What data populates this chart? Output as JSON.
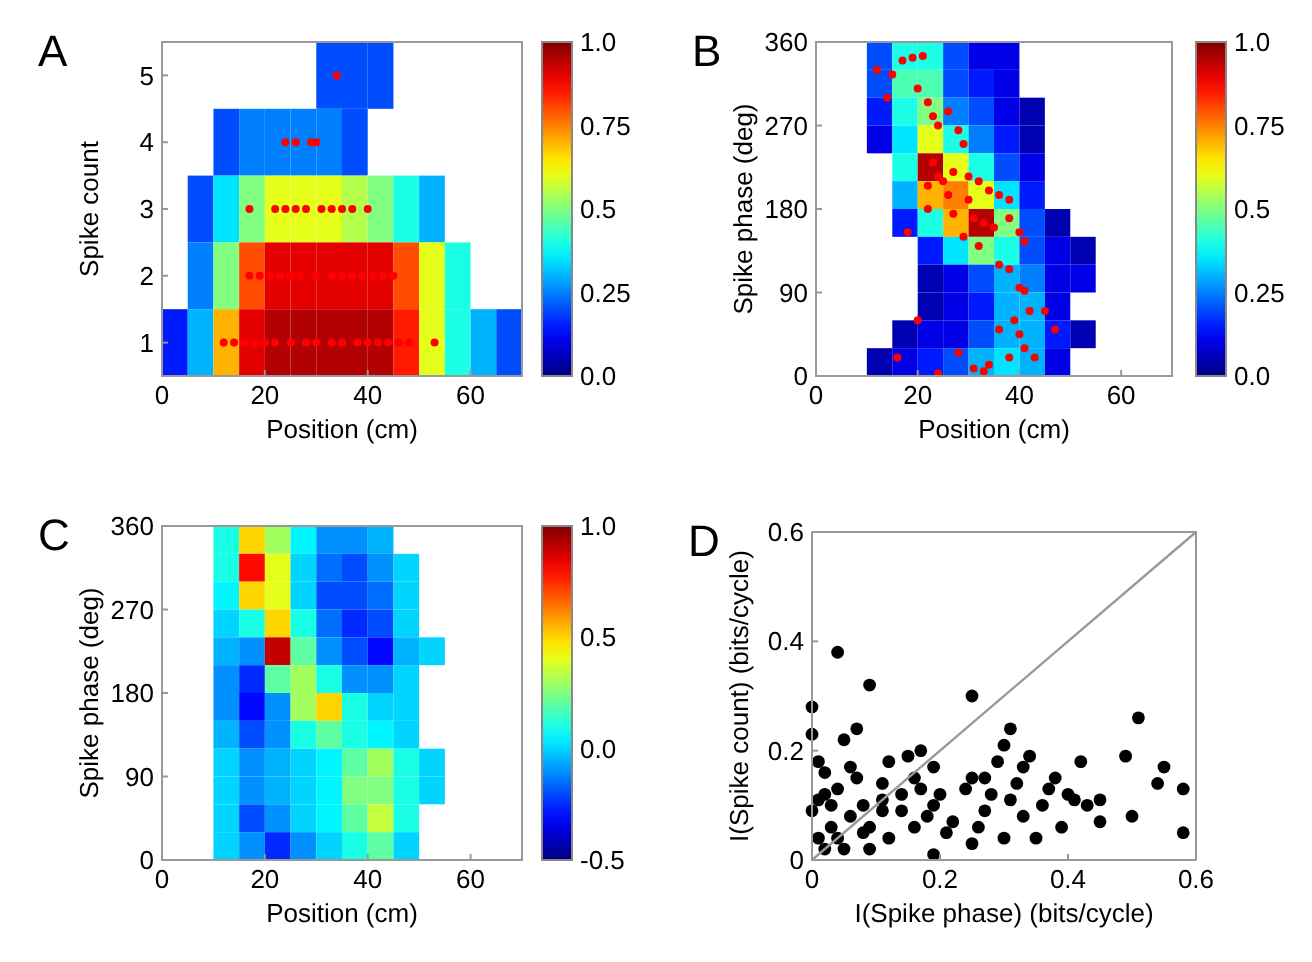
{
  "chart_data": [
    {
      "type": "heatmap",
      "title": "A",
      "xlabel": "Position (cm)",
      "ylabel": "Spike count",
      "xlim": [
        0,
        70
      ],
      "ylim": [
        0.5,
        5.5
      ],
      "xticks": [
        0,
        20,
        40,
        60
      ],
      "yticks": [
        1,
        2,
        3,
        4,
        5
      ],
      "clim": [
        0,
        1
      ],
      "cticks": [
        {
          "value": 0,
          "label": "0.0"
        },
        0.25,
        0.5,
        0.75,
        {
          "value": 1,
          "label": "1.0"
        }
      ],
      "marker": "circle",
      "cells": [
        [
          null,
          null,
          null,
          null,
          null,
          null,
          0.2,
          0.2,
          0.2,
          null,
          null,
          null,
          null,
          null
        ],
        [
          null,
          null,
          0.2,
          0.25,
          0.25,
          0.25,
          0.25,
          0.2,
          null,
          null,
          null,
          null,
          null,
          null
        ],
        [
          null,
          0.2,
          0.35,
          0.5,
          0.6,
          0.6,
          0.6,
          0.55,
          0.5,
          0.4,
          0.3,
          null,
          null,
          null
        ],
        [
          null,
          0.25,
          0.5,
          0.8,
          0.9,
          0.9,
          0.9,
          0.9,
          0.9,
          0.8,
          0.6,
          0.4,
          null,
          null
        ],
        [
          0.15,
          0.3,
          0.7,
          0.9,
          0.95,
          0.95,
          0.95,
          0.95,
          0.95,
          0.85,
          0.6,
          0.4,
          0.3,
          0.2
        ]
      ],
      "series": [
        {
          "type": "scatter",
          "color": "#ff0000",
          "x": [
            12,
            14,
            16,
            18,
            20,
            22,
            25,
            28,
            30,
            33,
            35,
            38,
            40,
            42,
            44,
            46,
            48,
            53,
            17,
            19,
            21,
            23,
            25,
            27,
            30,
            33,
            35,
            37,
            39,
            41,
            43,
            45,
            17,
            22,
            24,
            26,
            28,
            31,
            33,
            35,
            37,
            40,
            24,
            26,
            29,
            30,
            34
          ],
          "values": [
            1,
            1,
            1,
            1,
            1,
            1,
            1,
            1,
            1,
            1,
            1,
            1,
            1,
            1,
            1,
            1,
            1,
            1,
            2,
            2,
            2,
            2,
            2,
            2,
            2,
            2,
            2,
            2,
            2,
            2,
            2,
            2,
            3,
            3,
            3,
            3,
            3,
            3,
            3,
            3,
            3,
            3,
            4,
            4,
            4,
            4,
            5
          ]
        }
      ]
    },
    {
      "type": "heatmap",
      "title": "B",
      "xlabel": "Position (cm)",
      "ylabel": "Spike phase (deg)",
      "xlim": [
        0,
        70
      ],
      "ylim": [
        0,
        360
      ],
      "xticks": [
        0,
        20,
        40,
        60
      ],
      "yticks": [
        0,
        90,
        180,
        270,
        360
      ],
      "clim": [
        0,
        1
      ],
      "cticks": [
        {
          "value": 0,
          "label": "0.0"
        },
        0.25,
        0.5,
        0.75,
        {
          "value": 1,
          "label": "1.0"
        }
      ],
      "marker": "circle",
      "cells": [
        [
          null,
          null,
          0.2,
          0.4,
          0.4,
          0.2,
          0.1,
          0.1,
          null,
          null,
          null,
          null,
          null,
          null
        ],
        [
          null,
          null,
          0.2,
          0.45,
          0.45,
          0.2,
          0.15,
          0.1,
          null,
          null,
          null,
          null,
          null,
          null
        ],
        [
          null,
          null,
          0.15,
          0.4,
          0.5,
          0.25,
          0.2,
          0.1,
          0.05,
          null,
          null,
          null,
          null,
          null
        ],
        [
          null,
          null,
          0.1,
          0.35,
          0.6,
          0.4,
          0.25,
          0.15,
          0.05,
          null,
          null,
          null,
          null,
          null
        ],
        [
          null,
          null,
          null,
          0.4,
          0.95,
          0.6,
          0.4,
          0.2,
          0.1,
          null,
          null,
          null,
          null,
          null
        ],
        [
          null,
          null,
          null,
          0.3,
          0.7,
          0.75,
          0.6,
          0.35,
          0.15,
          null,
          null,
          null,
          null,
          null
        ],
        [
          null,
          null,
          null,
          0.15,
          0.4,
          0.7,
          0.95,
          0.5,
          0.2,
          0.05,
          null,
          null,
          null,
          null
        ],
        [
          null,
          null,
          null,
          null,
          0.15,
          0.35,
          0.5,
          0.4,
          0.2,
          0.1,
          0.05,
          null,
          null,
          null
        ],
        [
          null,
          null,
          null,
          null,
          0.05,
          0.1,
          0.2,
          0.3,
          0.25,
          0.1,
          0.1,
          null,
          null,
          null
        ],
        [
          null,
          null,
          null,
          null,
          0.05,
          0.1,
          0.15,
          0.3,
          0.3,
          0.1,
          null,
          null,
          null,
          null
        ],
        [
          null,
          null,
          null,
          0.05,
          0.1,
          0.1,
          0.2,
          0.3,
          0.3,
          0.15,
          0.05,
          null,
          null,
          null
        ],
        [
          null,
          null,
          0.05,
          0.1,
          0.15,
          0.2,
          0.3,
          0.35,
          0.3,
          0.1,
          null,
          null,
          null,
          null
        ]
      ],
      "series": [
        {
          "type": "scatter",
          "color": "#ff0000",
          "x": [
            12,
            15,
            17,
            19,
            21,
            14,
            20,
            22,
            23,
            26,
            24,
            28,
            29,
            23,
            24,
            25,
            22,
            27,
            30,
            32,
            34,
            36,
            38,
            30,
            27,
            31,
            33,
            35,
            38,
            40,
            41,
            29,
            32,
            36,
            38,
            40,
            41,
            42,
            39,
            36,
            40,
            41,
            38,
            33,
            31,
            34,
            45,
            47,
            43,
            28,
            24,
            16,
            20,
            18,
            22,
            26
          ],
          "values": [
            330,
            325,
            340,
            343,
            345,
            300,
            310,
            295,
            280,
            285,
            270,
            265,
            250,
            230,
            215,
            210,
            205,
            220,
            215,
            210,
            200,
            195,
            190,
            190,
            175,
            170,
            165,
            160,
            170,
            155,
            145,
            150,
            140,
            120,
            115,
            95,
            92,
            70,
            60,
            50,
            45,
            30,
            20,
            5,
            8,
            12,
            70,
            50,
            20,
            25,
            3,
            20,
            60,
            155,
            180,
            195
          ]
        }
      ]
    },
    {
      "type": "heatmap",
      "title": "C",
      "xlabel": "Position (cm)",
      "ylabel": "Spike phase (deg)",
      "xlim": [
        0,
        70
      ],
      "ylim": [
        0,
        360
      ],
      "xticks": [
        0,
        20,
        40,
        60
      ],
      "yticks": [
        0,
        90,
        180,
        270,
        360
      ],
      "clim": [
        -0.5,
        1
      ],
      "cticks": [
        {
          "value": -0.5,
          "label": "-0.5"
        },
        {
          "value": 0,
          "label": "0.0"
        },
        0.5,
        {
          "value": 1,
          "label": "1.0"
        }
      ],
      "cells": [
        [
          null,
          null,
          0.1,
          0.5,
          0.3,
          0.05,
          -0.1,
          -0.1,
          -0.05,
          null,
          null,
          null,
          null,
          null
        ],
        [
          null,
          null,
          0.1,
          0.8,
          0.4,
          0,
          -0.15,
          -0.2,
          -0.1,
          0,
          null,
          null,
          null,
          null
        ],
        [
          null,
          null,
          0.05,
          0.5,
          0.4,
          0,
          -0.2,
          -0.2,
          -0.15,
          0,
          null,
          null,
          null,
          null
        ],
        [
          null,
          null,
          0,
          0.1,
          0.5,
          0.1,
          -0.15,
          -0.25,
          -0.2,
          0,
          null,
          null,
          null,
          null
        ],
        [
          null,
          null,
          -0.05,
          -0.1,
          0.9,
          0.2,
          -0.1,
          -0.2,
          -0.3,
          -0.05,
          0,
          null,
          null,
          null
        ],
        [
          null,
          null,
          -0.1,
          -0.25,
          0.2,
          0.3,
          0.1,
          -0.1,
          -0.1,
          0,
          null,
          null,
          null,
          null
        ],
        [
          null,
          null,
          -0.1,
          -0.3,
          -0.1,
          0.3,
          0.5,
          0.1,
          0,
          0,
          null,
          null,
          null,
          null
        ],
        [
          null,
          null,
          -0.05,
          -0.2,
          -0.1,
          0.1,
          0.2,
          0.1,
          0.05,
          0,
          null,
          null,
          null,
          null
        ],
        [
          null,
          null,
          0,
          -0.1,
          -0.05,
          0,
          0.05,
          0.2,
          0.3,
          0.1,
          0,
          null,
          null,
          null
        ],
        [
          null,
          null,
          0,
          -0.1,
          -0.05,
          0,
          0.05,
          0.25,
          0.25,
          0.1,
          0,
          null,
          null,
          null
        ],
        [
          null,
          null,
          0,
          -0.2,
          -0.1,
          0,
          0.05,
          0.2,
          0.35,
          0.1,
          null,
          null,
          null,
          null
        ],
        [
          null,
          null,
          0,
          -0.1,
          -0.25,
          -0.1,
          0,
          0.1,
          0.2,
          0,
          null,
          null,
          null,
          null
        ]
      ]
    },
    {
      "type": "scatter",
      "title": "D",
      "xlabel": "I(Spike phase) (bits/cycle)",
      "ylabel": "I(Spike count) (bits/cycle)",
      "xlim": [
        0,
        0.6
      ],
      "ylim": [
        0,
        0.6
      ],
      "xticks": [
        0,
        0.2,
        0.4,
        0.6
      ],
      "yticks": [
        0,
        0.2,
        0.4,
        0.6
      ],
      "marker": "circle",
      "series": [
        {
          "type": "scatter",
          "color": "#000000",
          "x": [
            0.04,
            0.09,
            0,
            0.25,
            0.07,
            0,
            0.05,
            0.31,
            0.51,
            0.3,
            0.17,
            0.42,
            0.49,
            0.55,
            0.12,
            0.15,
            0.19,
            0.29,
            0.34,
            0.01,
            0.02,
            0.06,
            0.54,
            0.58,
            0.45,
            0.41,
            0.5,
            0.58,
            0.19,
            0.25,
            0.3,
            0.35,
            0.39,
            0.33,
            0.27,
            0.22,
            0.16,
            0.12,
            0.09,
            0.05,
            0.02,
            0.01,
            0.03,
            0.06,
            0.08,
            0.11,
            0.14,
            0.17,
            0.2,
            0.24,
            0.27,
            0.32,
            0.37,
            0.4,
            0.43,
            0.36,
            0.31,
            0.02,
            0.04,
            0.07,
            0.03,
            0,
            0.09,
            0.14,
            0.19,
            0.04,
            0.08,
            0.21,
            0.26,
            0.38,
            0.33,
            0.25,
            0.16,
            0.11,
            0.01,
            0.11,
            0.18,
            0.28,
            0.45
          ],
          "values": [
            0.38,
            0.32,
            0.28,
            0.3,
            0.24,
            0.23,
            0.22,
            0.24,
            0.26,
            0.21,
            0.2,
            0.18,
            0.19,
            0.17,
            0.18,
            0.19,
            0.17,
            0.18,
            0.19,
            0.18,
            0.16,
            0.17,
            0.14,
            0.13,
            0.11,
            0.11,
            0.08,
            0.05,
            0.01,
            0.03,
            0.04,
            0.04,
            0.06,
            0.08,
            0.09,
            0.07,
            0.06,
            0.04,
            0.02,
            0.02,
            0.02,
            0.04,
            0.06,
            0.08,
            0.1,
            0.11,
            0.12,
            0.13,
            0.12,
            0.13,
            0.15,
            0.14,
            0.13,
            0.12,
            0.1,
            0.1,
            0.11,
            0.12,
            0.13,
            0.15,
            0.1,
            0.09,
            0.06,
            0.09,
            0.1,
            0.04,
            0.05,
            0.05,
            0.06,
            0.15,
            0.17,
            0.15,
            0.15,
            0.14,
            0.11,
            0.09,
            0.08,
            0.12,
            0.07
          ]
        },
        {
          "type": "line",
          "color": "#999999",
          "marker": "none",
          "x": [
            0,
            0.6
          ],
          "values": [
            0,
            0.6
          ]
        }
      ]
    }
  ]
}
